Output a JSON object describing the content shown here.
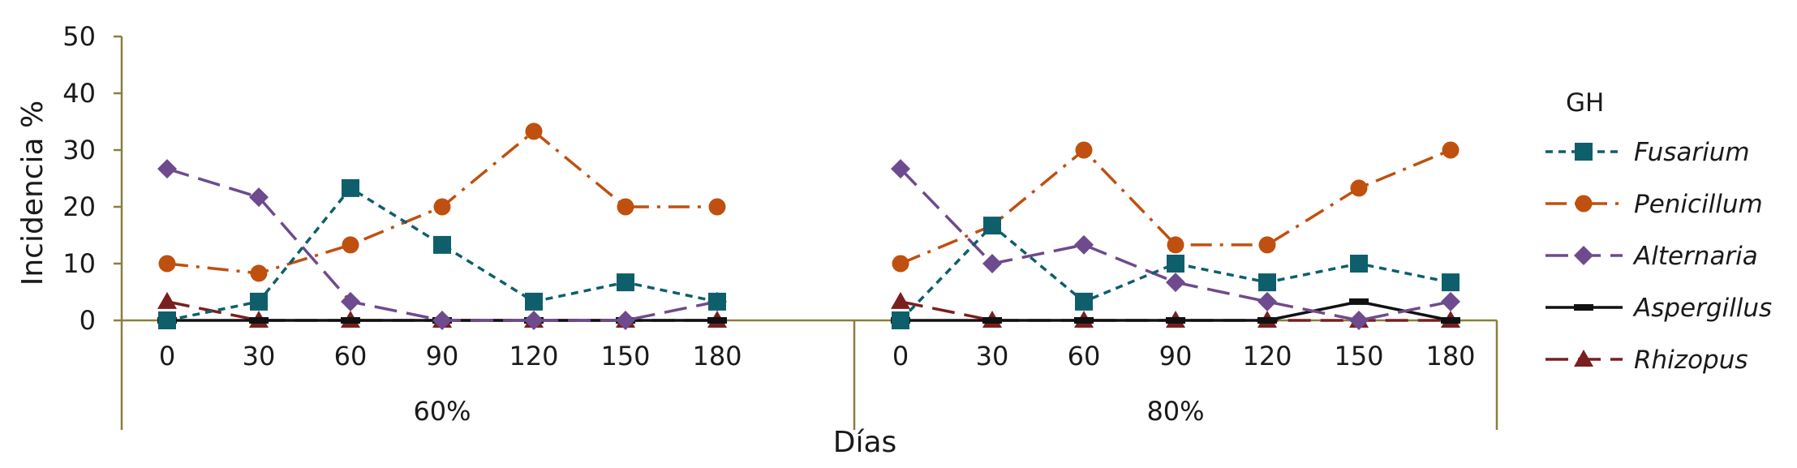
{
  "chart_data": {
    "type": "line",
    "title": "",
    "ylabel": "Incidencia %",
    "xlabel": "Días",
    "ylim": [
      0,
      50
    ],
    "yticks": [
      "0",
      "10",
      "20",
      "30",
      "40",
      "50"
    ],
    "groups": [
      {
        "label": "60%",
        "categories": [
          "0",
          "30",
          "60",
          "90",
          "120",
          "150",
          "180"
        ]
      },
      {
        "label": "80%",
        "categories": [
          "0",
          "30",
          "60",
          "90",
          "120",
          "150",
          "180"
        ]
      }
    ],
    "legend_title": "GH",
    "legend_position": "right",
    "series": [
      {
        "name": "Fusarium",
        "color": "#0e5f6b",
        "dash": "short-dash",
        "marker": "square",
        "values": [
          [
            0,
            3.3,
            23.3,
            13.3,
            3.3,
            6.7,
            3.3
          ],
          [
            0,
            16.7,
            3.3,
            10,
            6.7,
            10,
            6.7
          ]
        ]
      },
      {
        "name": "Penicillum",
        "color": "#c0500f",
        "dash": "dash-dot",
        "marker": "circle",
        "values": [
          [
            10,
            8.3,
            13.3,
            20,
            33.3,
            20,
            20
          ],
          [
            10,
            16.7,
            30,
            13.3,
            13.3,
            23.3,
            30
          ]
        ]
      },
      {
        "name": "Alternaria",
        "color": "#6e4a8e",
        "dash": "long-dash",
        "marker": "diamond",
        "values": [
          [
            26.7,
            21.7,
            3.3,
            0,
            0,
            0,
            3.3
          ],
          [
            26.7,
            10,
            13.3,
            6.7,
            3.3,
            0,
            3.3
          ]
        ]
      },
      {
        "name": "Aspergillus",
        "color": "#111111",
        "dash": "solid",
        "marker": "dash",
        "values": [
          [
            0,
            0,
            0,
            0,
            0,
            0,
            0
          ],
          [
            0,
            0,
            0,
            0,
            0,
            3.3,
            0
          ]
        ]
      },
      {
        "name": "Rhizopus",
        "color": "#7a1f1f",
        "dash": "long-dash",
        "marker": "triangle",
        "values": [
          [
            3.3,
            0,
            0,
            0,
            0,
            0,
            0
          ],
          [
            3.3,
            0,
            0,
            0,
            0,
            0,
            0
          ]
        ]
      }
    ]
  }
}
